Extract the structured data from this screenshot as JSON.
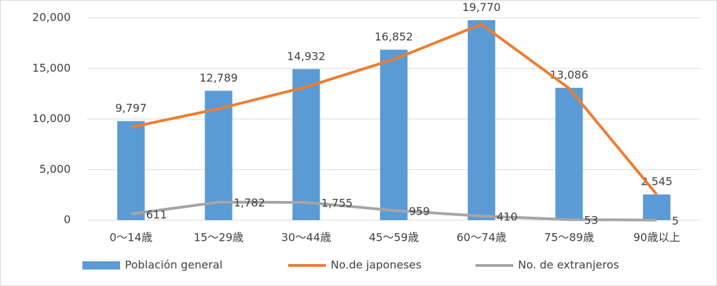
{
  "chart_data": {
    "type": "bar",
    "categories": [
      "0～14歳",
      "15～29歳",
      "30～44歳",
      "45～59歳",
      "60～74歳",
      "75～89歳",
      "90歳以上"
    ],
    "series": [
      {
        "name": "Población general",
        "type": "bar",
        "color": "#5b9bd5",
        "values": [
          9797,
          12789,
          14932,
          16852,
          19770,
          13086,
          2545
        ],
        "value_labels": [
          "9,797",
          "12,789",
          "14,932",
          "16,852",
          "19,770",
          "13,086",
          "2,545"
        ]
      },
      {
        "name": "No.de japoneses",
        "type": "line",
        "color": "#ed7d31",
        "values": [
          9186,
          11007,
          13177,
          15893,
          19360,
          13033,
          2540
        ]
      },
      {
        "name": "No. de extranjeros",
        "type": "line",
        "color": "#a5a5a5",
        "values": [
          611,
          1782,
          1755,
          959,
          410,
          53,
          5
        ],
        "value_labels": [
          "611",
          "1,782",
          "1,755",
          "959",
          "410",
          "53",
          "5"
        ]
      }
    ],
    "ylim": [
      0,
      20000
    ],
    "yticks": [
      0,
      {
        "value": 5000,
        "label": "5,000"
      },
      {
        "value": 10000,
        "label": "10,000"
      },
      {
        "value": 15000,
        "label": "15,000"
      },
      {
        "value": 20000,
        "label": "20,000"
      }
    ],
    "grid": true,
    "legend": "bottom"
  }
}
